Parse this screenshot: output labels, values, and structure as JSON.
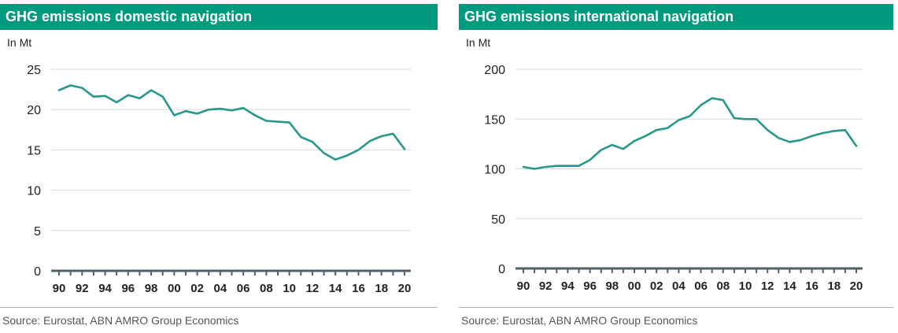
{
  "colors": {
    "accent": "#009A7F",
    "line": "#27978A",
    "axis": "#555F66",
    "grid": "#D9D9D9"
  },
  "chart_data": [
    {
      "type": "line",
      "title": "GHG emissions domestic navigation",
      "ylabel": "In Mt",
      "xlabel": "",
      "x_tick_labels": [
        "90",
        "92",
        "94",
        "96",
        "98",
        "00",
        "02",
        "04",
        "06",
        "08",
        "10",
        "12",
        "14",
        "16",
        "18",
        "20"
      ],
      "ylim": [
        0,
        25
      ],
      "y_ticks": [
        0,
        5,
        10,
        15,
        20,
        25
      ],
      "grid": true,
      "series": [
        {
          "x": [
            "1990",
            "1991",
            "1992",
            "1993",
            "1994",
            "1995",
            "1996",
            "1997",
            "1998",
            "1999",
            "2000",
            "2001",
            "2002",
            "2003",
            "2004",
            "2005",
            "2006",
            "2007",
            "2008",
            "2009",
            "2010",
            "2011",
            "2012",
            "2013",
            "2014",
            "2015",
            "2016",
            "2017",
            "2018",
            "2019",
            "2020"
          ],
          "values": [
            22.4,
            23.0,
            22.7,
            21.6,
            21.7,
            20.9,
            21.8,
            21.4,
            22.4,
            21.6,
            19.3,
            19.8,
            19.5,
            20.0,
            20.1,
            19.9,
            20.2,
            19.3,
            18.6,
            18.5,
            18.4,
            16.6,
            16.0,
            14.6,
            13.8,
            14.3,
            15.0,
            16.1,
            16.7,
            17.0,
            15.1
          ]
        }
      ],
      "source": "Source: Eurostat, ABN AMRO Group Economics"
    },
    {
      "type": "line",
      "title": "GHG emissions international navigation",
      "ylabel": "In Mt",
      "xlabel": "",
      "x_tick_labels": [
        "90",
        "92",
        "94",
        "96",
        "98",
        "00",
        "02",
        "04",
        "06",
        "08",
        "10",
        "12",
        "14",
        "16",
        "18",
        "20"
      ],
      "ylim": [
        0,
        200
      ],
      "y_ticks": [
        0,
        50,
        100,
        150,
        200
      ],
      "grid": true,
      "series": [
        {
          "x": [
            "1990",
            "1991",
            "1992",
            "1993",
            "1994",
            "1995",
            "1996",
            "1997",
            "1998",
            "1999",
            "2000",
            "2001",
            "2002",
            "2003",
            "2004",
            "2005",
            "2006",
            "2007",
            "2008",
            "2009",
            "2010",
            "2011",
            "2012",
            "2013",
            "2014",
            "2015",
            "2016",
            "2017",
            "2018",
            "2019",
            "2020"
          ],
          "values": [
            102,
            100,
            102,
            103,
            103,
            103,
            109,
            119,
            124,
            120,
            128,
            133,
            139,
            141,
            149,
            153,
            164,
            171,
            169,
            151,
            150,
            150,
            139,
            131,
            127,
            129,
            133,
            136,
            138,
            139,
            123
          ]
        }
      ],
      "source": "Source: Eurostat, ABN AMRO Group Economics"
    }
  ]
}
